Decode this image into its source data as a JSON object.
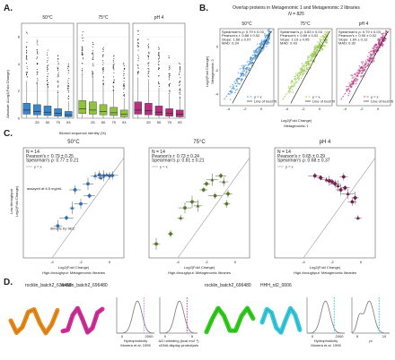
{
  "panelA": {
    "label": "A.",
    "ylabel": "Absolute ΔLog2(Fold Change)",
    "xlabel": "Binned sequence identity (%)",
    "yticks": [
      "0",
      "2",
      "4",
      "6"
    ],
    "xticks": [
      "25",
      "50",
      "75",
      "93"
    ],
    "subplots": [
      {
        "title": "50°C",
        "color": "#3a86c8",
        "boxes": [
          {
            "q1": 0.3,
            "med": 0.6,
            "q3": 1.1
          },
          {
            "q1": 0.25,
            "med": 0.5,
            "q3": 1.0
          },
          {
            "q1": 0.2,
            "med": 0.45,
            "q3": 0.9
          },
          {
            "q1": 0.15,
            "med": 0.35,
            "q3": 0.7
          },
          {
            "q1": 0.1,
            "med": 0.25,
            "q3": 0.5
          }
        ]
      },
      {
        "title": "75°C",
        "color": "#8fc33c",
        "boxes": [
          {
            "q1": 0.35,
            "med": 0.7,
            "q3": 1.3
          },
          {
            "q1": 0.3,
            "med": 0.6,
            "q3": 1.2
          },
          {
            "q1": 0.25,
            "med": 0.5,
            "q3": 1.0
          },
          {
            "q1": 0.2,
            "med": 0.4,
            "q3": 0.8
          },
          {
            "q1": 0.1,
            "med": 0.3,
            "q3": 0.6
          }
        ]
      },
      {
        "title": "pH 4",
        "color": "#b5307e",
        "boxes": [
          {
            "q1": 0.3,
            "med": 0.6,
            "q3": 1.2
          },
          {
            "q1": 0.25,
            "med": 0.55,
            "q3": 1.1
          },
          {
            "q1": 0.2,
            "med": 0.45,
            "q3": 0.9
          },
          {
            "q1": 0.15,
            "med": 0.35,
            "q3": 0.7
          },
          {
            "q1": 0.1,
            "med": 0.3,
            "q3": 0.6
          }
        ]
      }
    ]
  },
  "panelB": {
    "label": "B.",
    "title": "Overlap proteins in Metagenomic 1 and Metagenomic 2 libraries",
    "n": "N = 825",
    "xlabel": "Log2(Fold Change)",
    "xlabel2": "Metagenomic 1",
    "ylabel": "Log2(Fold Change)",
    "ylabel2": "Metagenomic 2",
    "ticks": [
      "-4",
      "-2",
      "0"
    ],
    "legend": [
      "y = x",
      "Line of best fit"
    ],
    "subplots": [
      {
        "title": "50°C",
        "color": "#3a86c8",
        "stats": [
          "Spearman's ρ: 0.79 ± 0.03",
          "Pearson's r: 0.88 ± 0.02",
          "Slope: 1.66 ± 0.07",
          "MAD: 0.24"
        ]
      },
      {
        "title": "75°C",
        "color": "#8fc33c",
        "stats": [
          "Spearman's ρ: 0.83 ± 0.03",
          "Pearson's r: 0.89 ± 0.02",
          "Slope: 1.19 ± 0.05",
          "MAD: 0.43"
        ]
      },
      {
        "title": "pH 4",
        "color": "#b5307e",
        "stats": [
          "Spearman's ρ: 0.79 ± 0.03",
          "Pearson's r: 0.90 ± 0.02",
          "Slope: 1.69 ± 0.12",
          "MAD: 0.30"
        ]
      }
    ]
  },
  "panelC": {
    "label": "C.",
    "xlabel": "Log2(Fold Change)",
    "xlabel2": "High-throughput: Metagenomic libraries",
    "ylabel": "Low-throughput",
    "ylabel2": "Log2(Fold Change)",
    "xticks": [
      "-4",
      "-2",
      "0"
    ],
    "legend": "y = x",
    "subplots": [
      {
        "title": "50°C",
        "color": "#2f6fb3",
        "stats": [
          "N = 14",
          "Pearson's r: 0.79 ± 0.25",
          "Spearman's ρ: 0.77 ± 0.21"
        ],
        "annotations": [
          "assayed at 6.5 mg/mL",
          "dimeric by SEC"
        ],
        "points": [
          [
            -3.6,
            -2.4
          ],
          [
            -3.0,
            -2.0
          ],
          [
            -2.6,
            -1.5
          ],
          [
            -2.0,
            -1.3
          ],
          [
            -1.4,
            -0.9
          ],
          [
            -1.0,
            0.1
          ],
          [
            -0.7,
            0.15
          ],
          [
            -0.4,
            0.1
          ],
          [
            -0.2,
            0.15
          ],
          [
            0.0,
            0.1
          ],
          [
            0.2,
            0.12
          ],
          [
            -0.6,
            0.0
          ],
          [
            -1.5,
            -0.3
          ],
          [
            -2.4,
            -0.6
          ]
        ]
      },
      {
        "title": "75°C",
        "color": "#4f7d1d",
        "stats": [
          "N = 14",
          "Pearson's r: 0.73 ± 0.24",
          "Spearman's ρ: 0.81 ± 0.21"
        ],
        "points": [
          [
            -5.5,
            -3.3
          ],
          [
            -4.5,
            -2.8
          ],
          [
            -3.8,
            -2.0
          ],
          [
            -3.5,
            -1.5
          ],
          [
            -3.0,
            -1.2
          ],
          [
            -2.6,
            -1.4
          ],
          [
            -2.2,
            -0.6
          ],
          [
            -2.0,
            -0.3
          ],
          [
            -1.6,
            -0.1
          ],
          [
            -1.4,
            -0.9
          ],
          [
            -1.0,
            0.1
          ],
          [
            -0.8,
            -0.2
          ],
          [
            -0.6,
            -1.3
          ],
          [
            -0.5,
            -0.8
          ]
        ]
      },
      {
        "title": "pH 4",
        "color": "#7a1b4e",
        "stats": [
          "N = 14",
          "Pearson's r: 0.65 ± 0.29",
          "Spearman's ρ: 0.68 ± 0.37"
        ],
        "points": [
          [
            -3.2,
            0.1
          ],
          [
            -2.8,
            0.0
          ],
          [
            -2.4,
            -0.1
          ],
          [
            -2.0,
            -0.2
          ],
          [
            -1.8,
            -0.3
          ],
          [
            -1.6,
            -0.4
          ],
          [
            -1.4,
            -0.6
          ],
          [
            -1.1,
            -0.5
          ],
          [
            -0.9,
            -0.8
          ],
          [
            -0.6,
            -1.2
          ],
          [
            -0.4,
            -1.0
          ],
          [
            -0.2,
            -2.0
          ],
          [
            -1.2,
            0.05
          ],
          [
            -2.2,
            -0.15
          ]
        ]
      }
    ]
  },
  "panelD": {
    "label": "D.",
    "items": [
      {
        "title": "rocklin_batch2_636468",
        "color": "#e88a1a"
      },
      {
        "title": "rocklin_batch2_696480",
        "color": "#d02f9a"
      },
      {
        "title": "rocklin_batch2_696480",
        "color": "#33cc1f"
      },
      {
        "title": "HHH_rd2_0006",
        "color": "#35c9dd"
      }
    ],
    "histograms": [
      {
        "xlabel": "Hydrophobicity",
        "xlabel2": "Monera et al. 1995",
        "ticks": [
          "0",
          "2000"
        ],
        "line": "#c07df0"
      },
      {
        "xlabel": "ΔG unfolding (kcal mol⁻¹)",
        "xlabel2": "cDNA display proteolysis",
        "ticks": [
          "0",
          "5"
        ],
        "line": "#d02f9a"
      },
      {
        "xlabel": "Hydrophobicity",
        "xlabel2": "Monera et al. 1995",
        "ticks": [
          "0",
          "2000"
        ],
        "line": "#35c9dd"
      },
      {
        "xlabel": "pI",
        "ticks": [
          "5",
          "10"
        ],
        "line": "#35c9dd"
      }
    ]
  }
}
